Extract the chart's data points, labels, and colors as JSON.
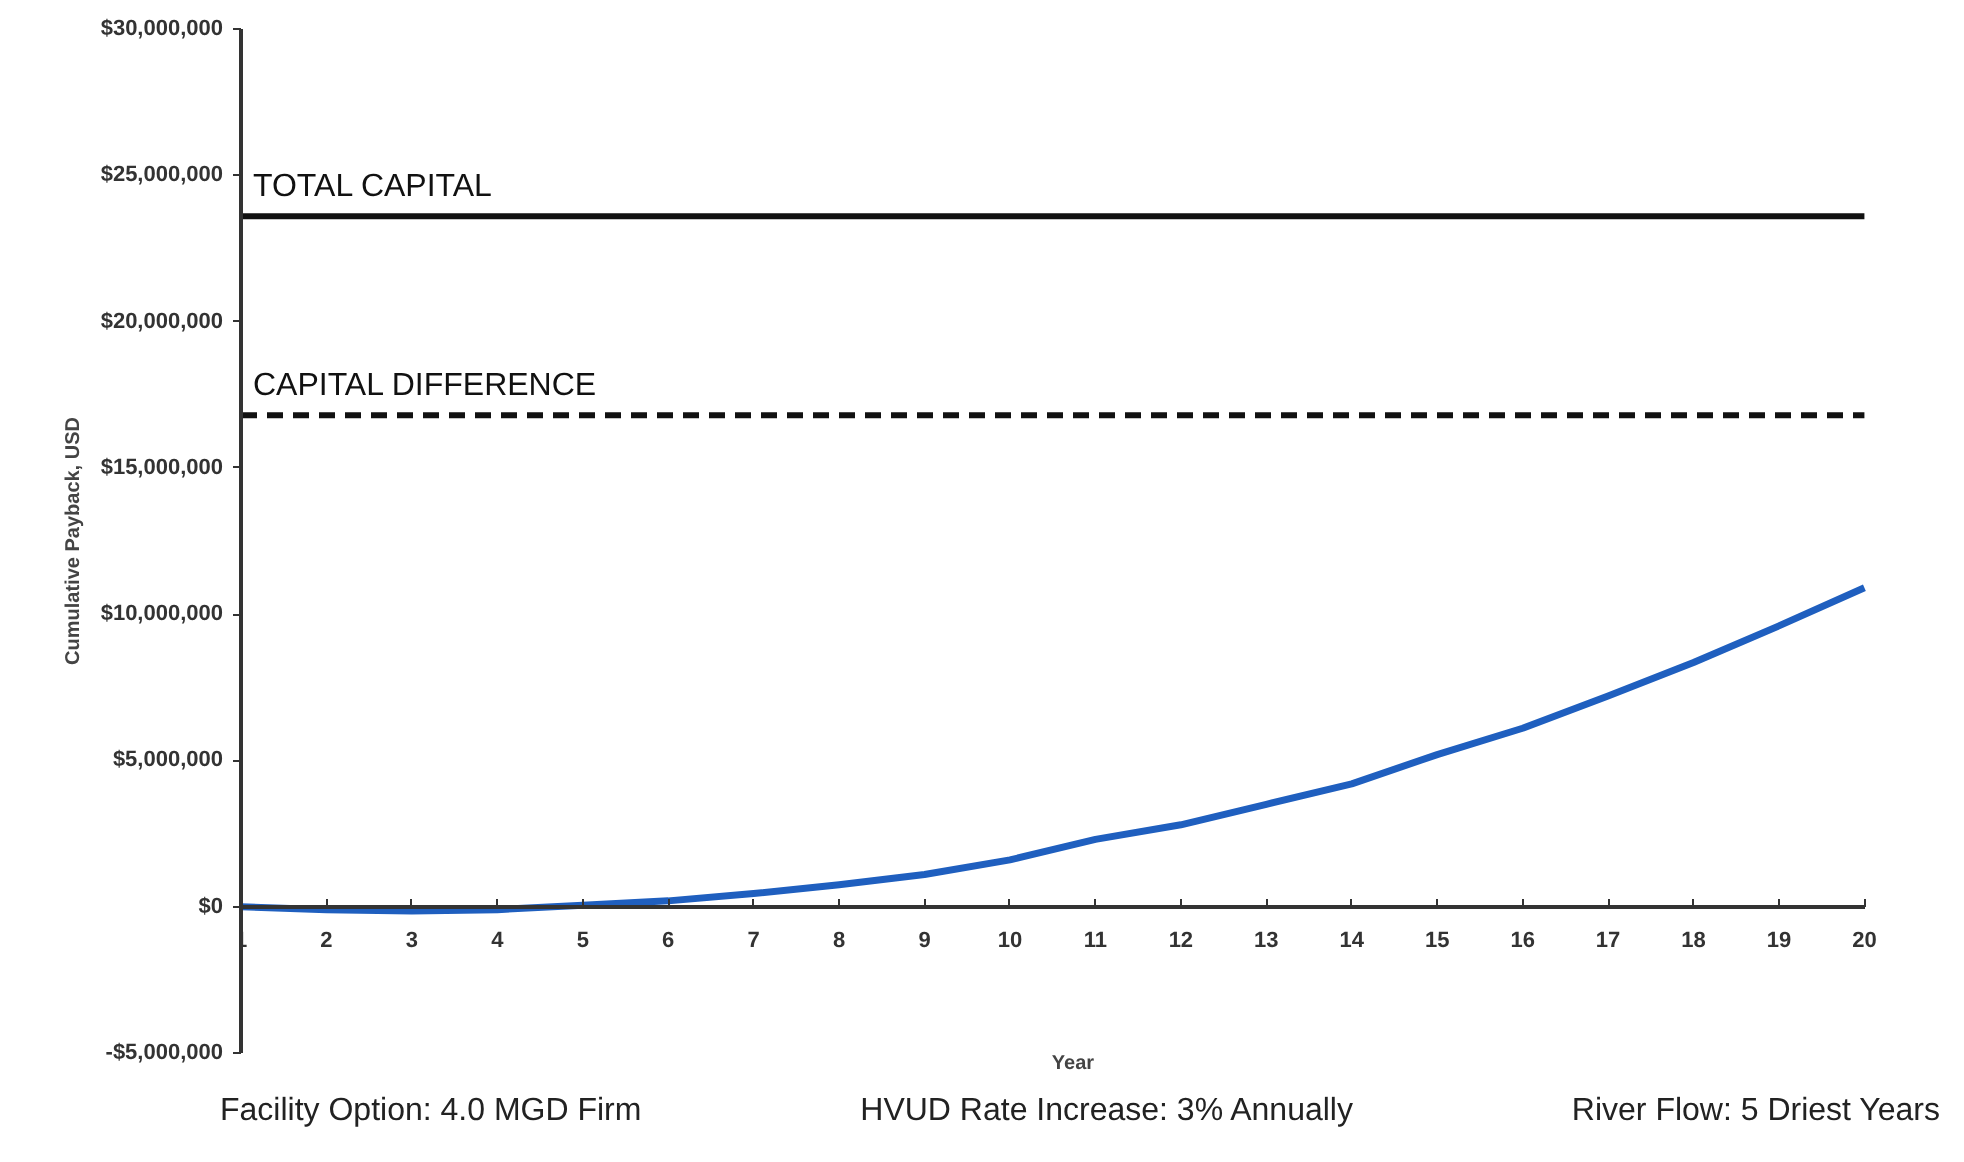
{
  "chart_data": {
    "type": "line",
    "xlabel": "Year",
    "ylabel": "Cumulative Payback, USD",
    "x": [
      1,
      2,
      3,
      4,
      5,
      6,
      7,
      8,
      9,
      10,
      11,
      12,
      13,
      14,
      15,
      16,
      17,
      18,
      19,
      20
    ],
    "series": [
      {
        "color": "#1f5fbf",
        "values": [
          0,
          -100000,
          -150000,
          -100000,
          50000,
          200000,
          450000,
          750000,
          1100000,
          1600000,
          2300000,
          2800000,
          3500000,
          4200000,
          5200000,
          6100000,
          7200000,
          8350000,
          9600000,
          10900000
        ]
      }
    ],
    "xlim": [
      1,
      20
    ],
    "xticks": [
      1,
      2,
      3,
      4,
      5,
      6,
      7,
      8,
      9,
      10,
      11,
      12,
      13,
      14,
      15,
      16,
      17,
      18,
      19,
      20
    ],
    "ylim": [
      -5000000,
      30000000
    ],
    "yticks": [
      {
        "value": -5000000,
        "label": "-$5,000,000"
      },
      {
        "value": 0,
        "label": "$0"
      },
      {
        "value": 5000000,
        "label": "$5,000,000"
      },
      {
        "value": 10000000,
        "label": "$10,000,000"
      },
      {
        "value": 15000000,
        "label": "$15,000,000"
      },
      {
        "value": 20000000,
        "label": "$20,000,000"
      },
      {
        "value": 25000000,
        "label": "$25,000,000"
      },
      {
        "value": 30000000,
        "label": "$30,000,000"
      }
    ],
    "ref_lines": [
      {
        "axis": "y",
        "value": 23600000,
        "label": "TOTAL CAPITAL",
        "color": "#111111",
        "line_style": "solid"
      },
      {
        "axis": "y",
        "value": 16800000,
        "label": "CAPITAL DIFFERENCE",
        "color": "#111111",
        "line_style": "dashed"
      }
    ],
    "annotations": [
      "Facility Option: 4.0 MGD Firm",
      "HVUD Rate Increase: 3% Annually",
      "River Flow:  5 Driest Years"
    ],
    "grid": false,
    "line_style": "solid"
  }
}
